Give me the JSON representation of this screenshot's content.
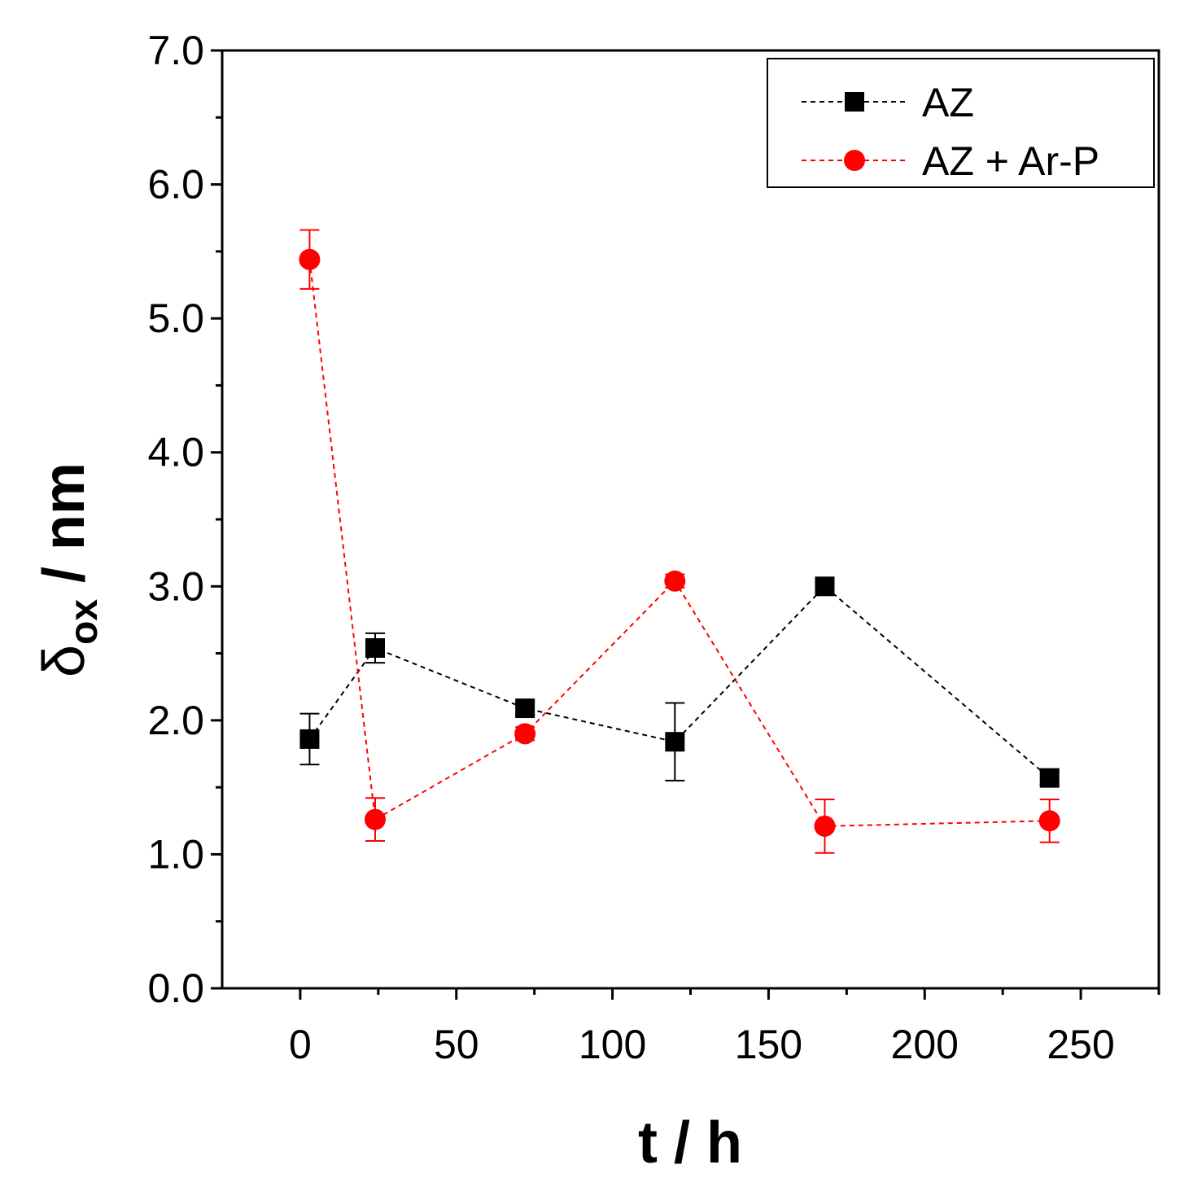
{
  "chart_data": {
    "type": "scatter",
    "title": "",
    "xlabel": "t / h",
    "ylabel": {
      "symbol": "δ",
      "subscript": "ox",
      "rest": " / nm"
    },
    "xlim": [
      -25,
      275
    ],
    "ylim": [
      0,
      7
    ],
    "xticks": [
      0,
      50,
      100,
      150,
      200,
      250
    ],
    "xtick_labels": [
      "0",
      "50",
      "100",
      "150",
      "200",
      "250"
    ],
    "yticks": [
      0,
      1,
      2,
      3,
      4,
      5,
      6,
      7
    ],
    "ytick_labels": [
      "0.0",
      "1.0",
      "2.0",
      "3.0",
      "4.0",
      "5.0",
      "6.0",
      "7.0"
    ],
    "grid": false,
    "legend_position": "top-right",
    "series": [
      {
        "name": "AZ",
        "color": "#000000",
        "marker": "square",
        "line_style": "dashed",
        "x": [
          3,
          24,
          72,
          120,
          168,
          240
        ],
        "y": [
          1.86,
          2.54,
          2.09,
          1.84,
          3.0,
          1.57
        ],
        "err": [
          0.19,
          0.11,
          0.05,
          0.29,
          0.04,
          0.05
        ]
      },
      {
        "name": "AZ + Ar-P",
        "color": "#ff0000",
        "marker": "circle",
        "line_style": "dashed",
        "x": [
          3,
          24,
          72,
          120,
          168,
          240
        ],
        "y": [
          5.44,
          1.26,
          1.9,
          3.04,
          1.21,
          1.25
        ],
        "err": [
          0.22,
          0.16,
          0.05,
          0.05,
          0.2,
          0.16
        ]
      }
    ]
  }
}
